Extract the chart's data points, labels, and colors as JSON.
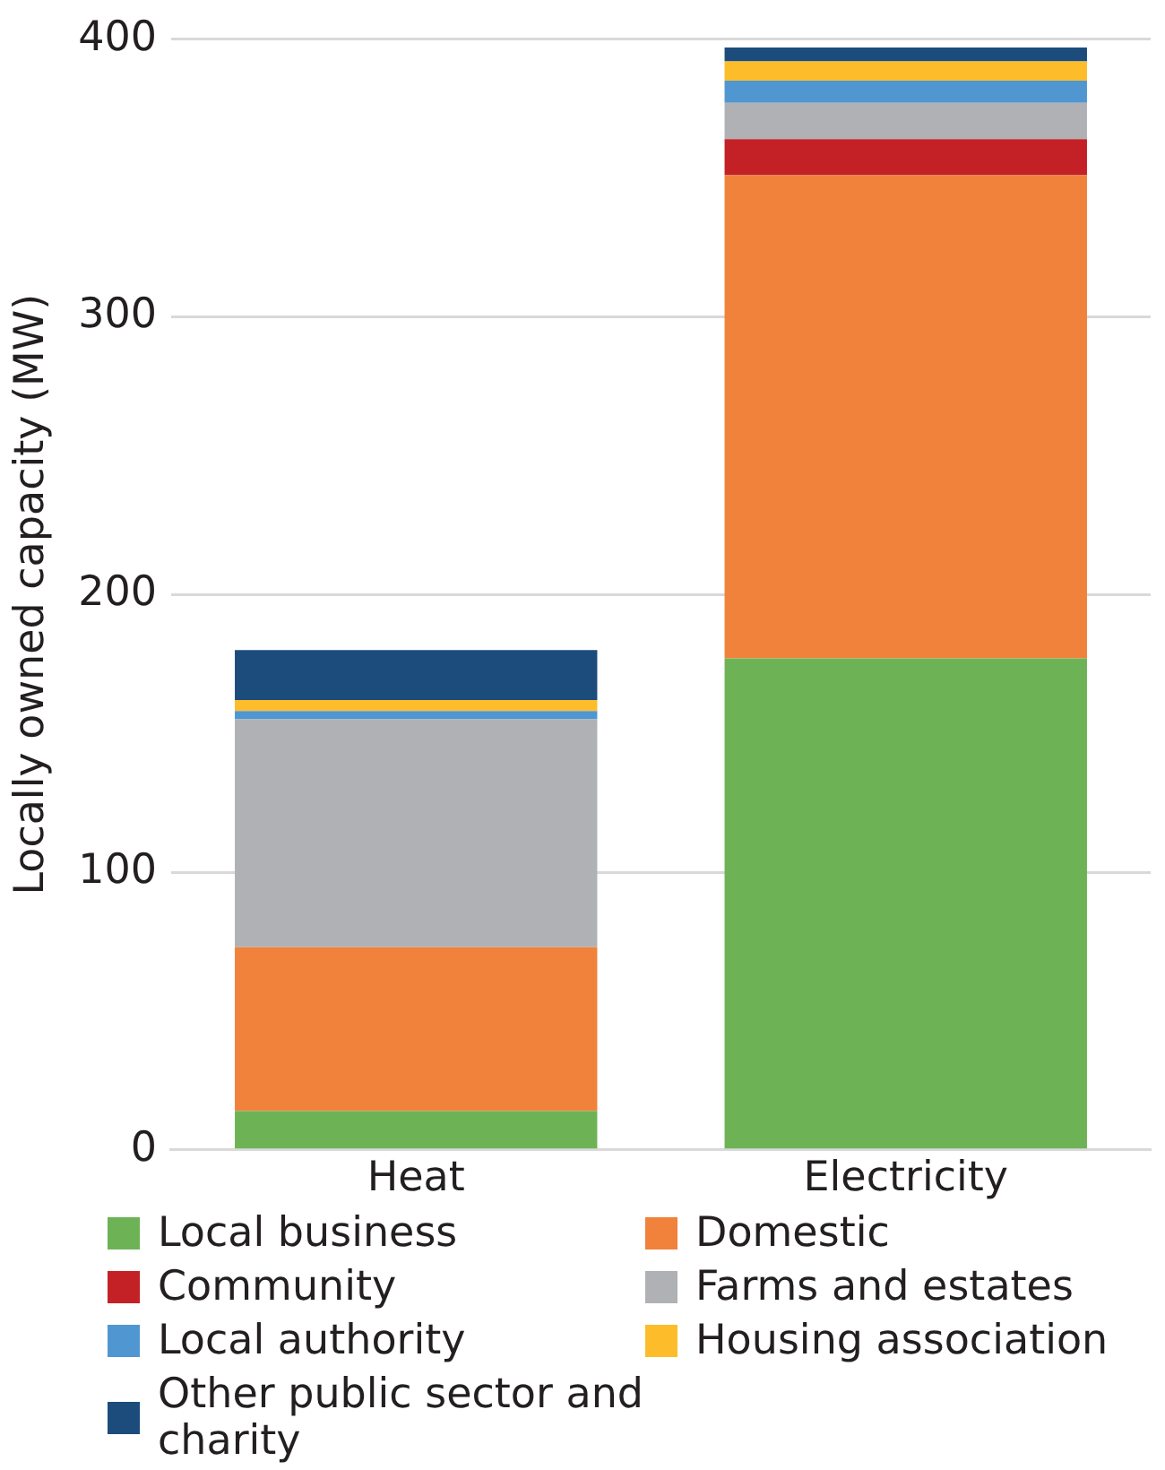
{
  "chart_data": {
    "type": "bar",
    "ylabel": "Locally owned capacity (MW)",
    "categories": [
      "Heat",
      "Electricity"
    ],
    "stacked": true,
    "series": [
      {
        "name": "Local business",
        "color": "#6db356",
        "values": [
          14,
          177
        ]
      },
      {
        "name": "Domestic",
        "color": "#f1823c",
        "values": [
          59,
          174
        ]
      },
      {
        "name": "Community",
        "color": "#c42126",
        "values": [
          0,
          13
        ]
      },
      {
        "name": "Farms and estates",
        "color": "#b0b1b4",
        "values": [
          82,
          13
        ]
      },
      {
        "name": "Local authority",
        "color": "#5097d1",
        "values": [
          3,
          8
        ]
      },
      {
        "name": "Housing association",
        "color": "#fdbd2b",
        "values": [
          4,
          7
        ]
      },
      {
        "name": "Other public sector and charity",
        "color": "#1b4c7c",
        "values": [
          18,
          5
        ]
      }
    ],
    "ylim": [
      0,
      400
    ],
    "yticks": [
      0,
      100,
      200,
      300,
      400
    ],
    "grid": "y",
    "legend": "bottom"
  }
}
